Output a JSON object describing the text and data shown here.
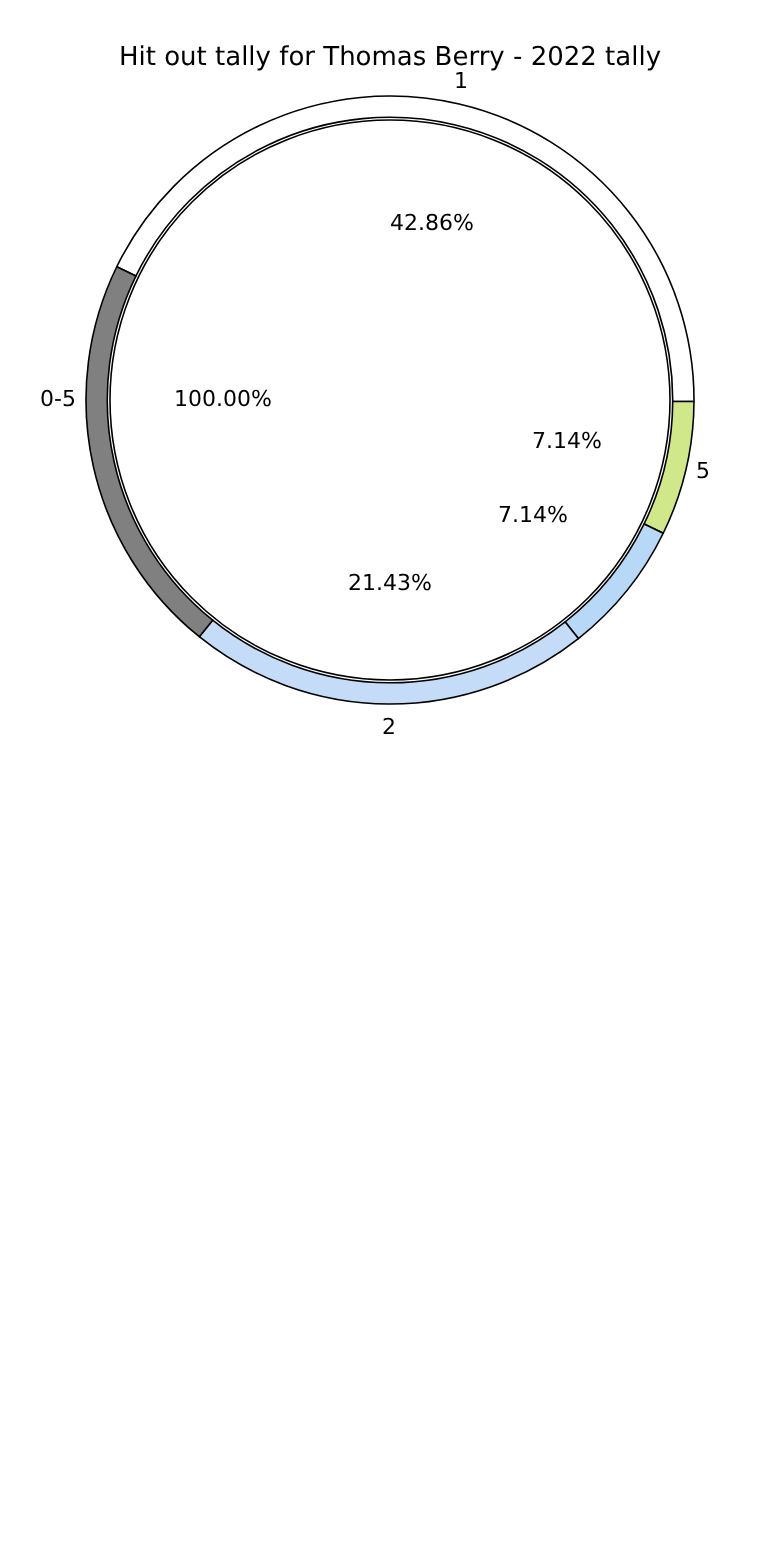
{
  "chart_data": [
    {
      "type": "pie",
      "title": "Hit out tally for Thomas Berry - 2022 tally",
      "categories": [
        "0-5"
      ],
      "values": [
        100
      ],
      "colors": [
        "#ffffff"
      ],
      "value_labels": [
        "100.00%"
      ]
    },
    {
      "type": "donut",
      "categories": [
        "1",
        "5",
        null,
        "2",
        null
      ],
      "values": [
        42.86,
        7.14,
        7.14,
        21.43,
        21.43
      ],
      "colors": [
        "#ffffff",
        "#d0e88a",
        "#b8d8f8",
        "#c4dcf8",
        "#808080"
      ],
      "value_labels": [
        "42.86%",
        "7.14%",
        "7.14%",
        "21.43%",
        null
      ]
    }
  ]
}
